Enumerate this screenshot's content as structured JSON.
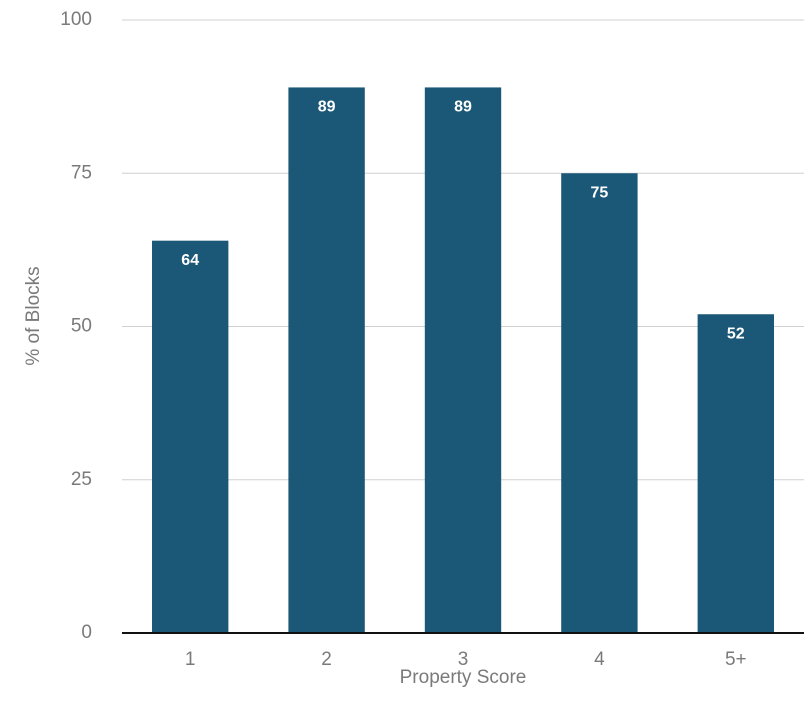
{
  "chart_data": {
    "type": "bar",
    "x_label": "Property Score",
    "y_label": "% of Blocks",
    "categories": [
      "1",
      "2",
      "3",
      "4",
      "5+"
    ],
    "values": [
      64,
      89,
      89,
      75,
      52
    ],
    "color": "#1b5777",
    "ylim": [
      0,
      100
    ],
    "yticks": [
      0,
      25,
      50,
      75,
      100
    ],
    "grid": true
  }
}
